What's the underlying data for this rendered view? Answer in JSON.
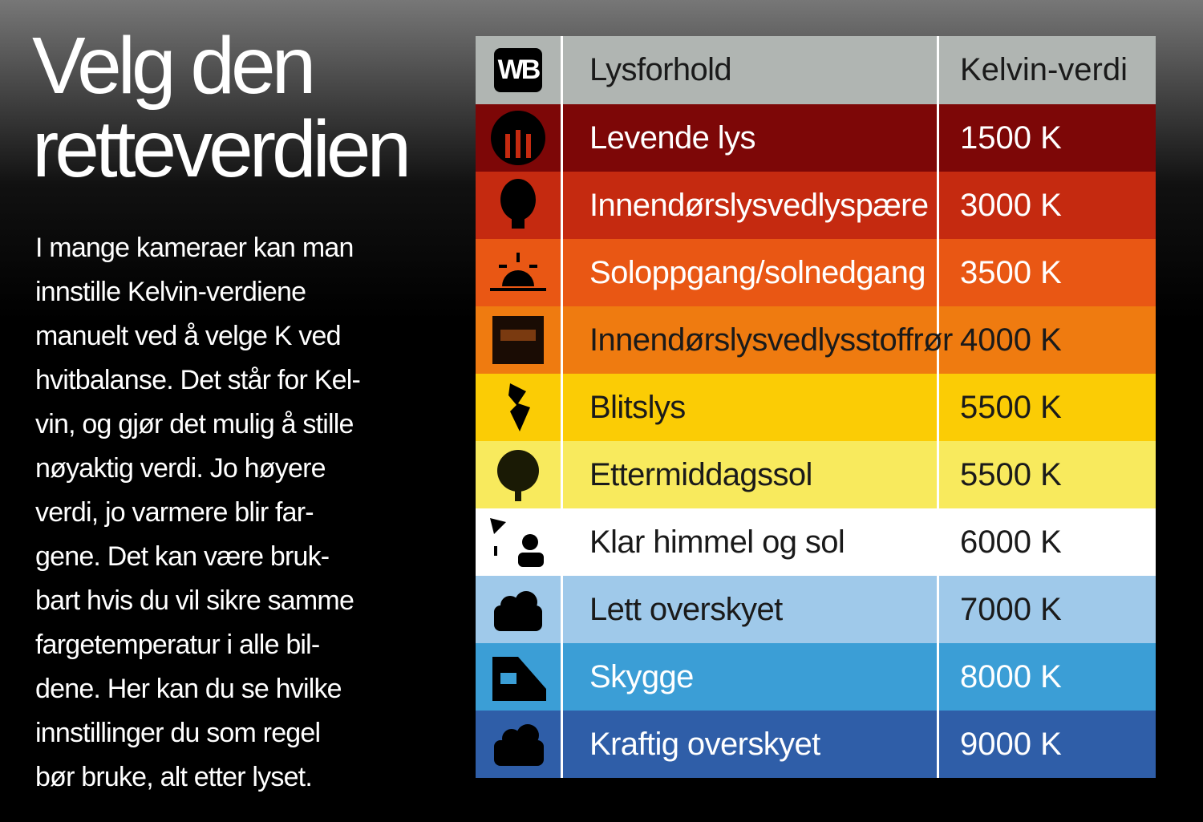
{
  "title": [
    "Velg den",
    "retteverdien"
  ],
  "body": [
    "I mange kameraer kan man",
    "innstille Kelvin-verdiene",
    "manuelt ved å velge K ved",
    "hvitbalanse. Det står for Kel-",
    "vin, og gjør det mulig å stille",
    "nøyaktig verdi. Jo høyere",
    "verdi, jo varmere blir far-",
    "gene. Det kan være bruk-",
    "bart hvis du vil sikre samme",
    "fargetemperatur i alle bil-",
    "dene. Her kan du se hvilke",
    "innstillinger du som regel",
    "bør bruke, alt etter lyset."
  ],
  "table": {
    "header": [
      "WB",
      "Lysforhold",
      "Kelvin-verdi"
    ],
    "rows": [
      {
        "label": "Levende lys",
        "value": "1500 K",
        "color": "#7d0707",
        "text_color": "#ffffff"
      },
      {
        "label": "Innendørslysvedlyspære",
        "value": "3000 K",
        "color": "#c52a10",
        "text_color": "#ffffff"
      },
      {
        "label": "Soloppgang/solnedgang",
        "value": "3500 K",
        "color": "#e95714",
        "text_color": "#ffffff"
      },
      {
        "label": "Innendørslysvedlysstoffrør",
        "value": "4000 K",
        "color": "#ef7b10",
        "text_color": "#1a1a1a"
      },
      {
        "label": "Blitslys",
        "value": "5500 K",
        "color": "#fbcc05",
        "text_color": "#1a1a1a"
      },
      {
        "label": "Ettermiddagssol",
        "value": "5500 K",
        "color": "#f8ea5d",
        "text_color": "#1a1a1a"
      },
      {
        "label": "Klar himmel og sol",
        "value": "6000 K",
        "color": "#ffffff",
        "text_color": "#1a1a1a"
      },
      {
        "label": "Lett overskyet",
        "value": "7000 K",
        "color": "#9fc9ea",
        "text_color": "#1a1a1a"
      },
      {
        "label": "Skygge",
        "value": "8000 K",
        "color": "#3b9ed6",
        "text_color": "#ffffff"
      },
      {
        "label": "Kraftig overskyet",
        "value": "9000 K",
        "color": "#2f5ea8",
        "text_color": "#ffffff"
      }
    ]
  }
}
